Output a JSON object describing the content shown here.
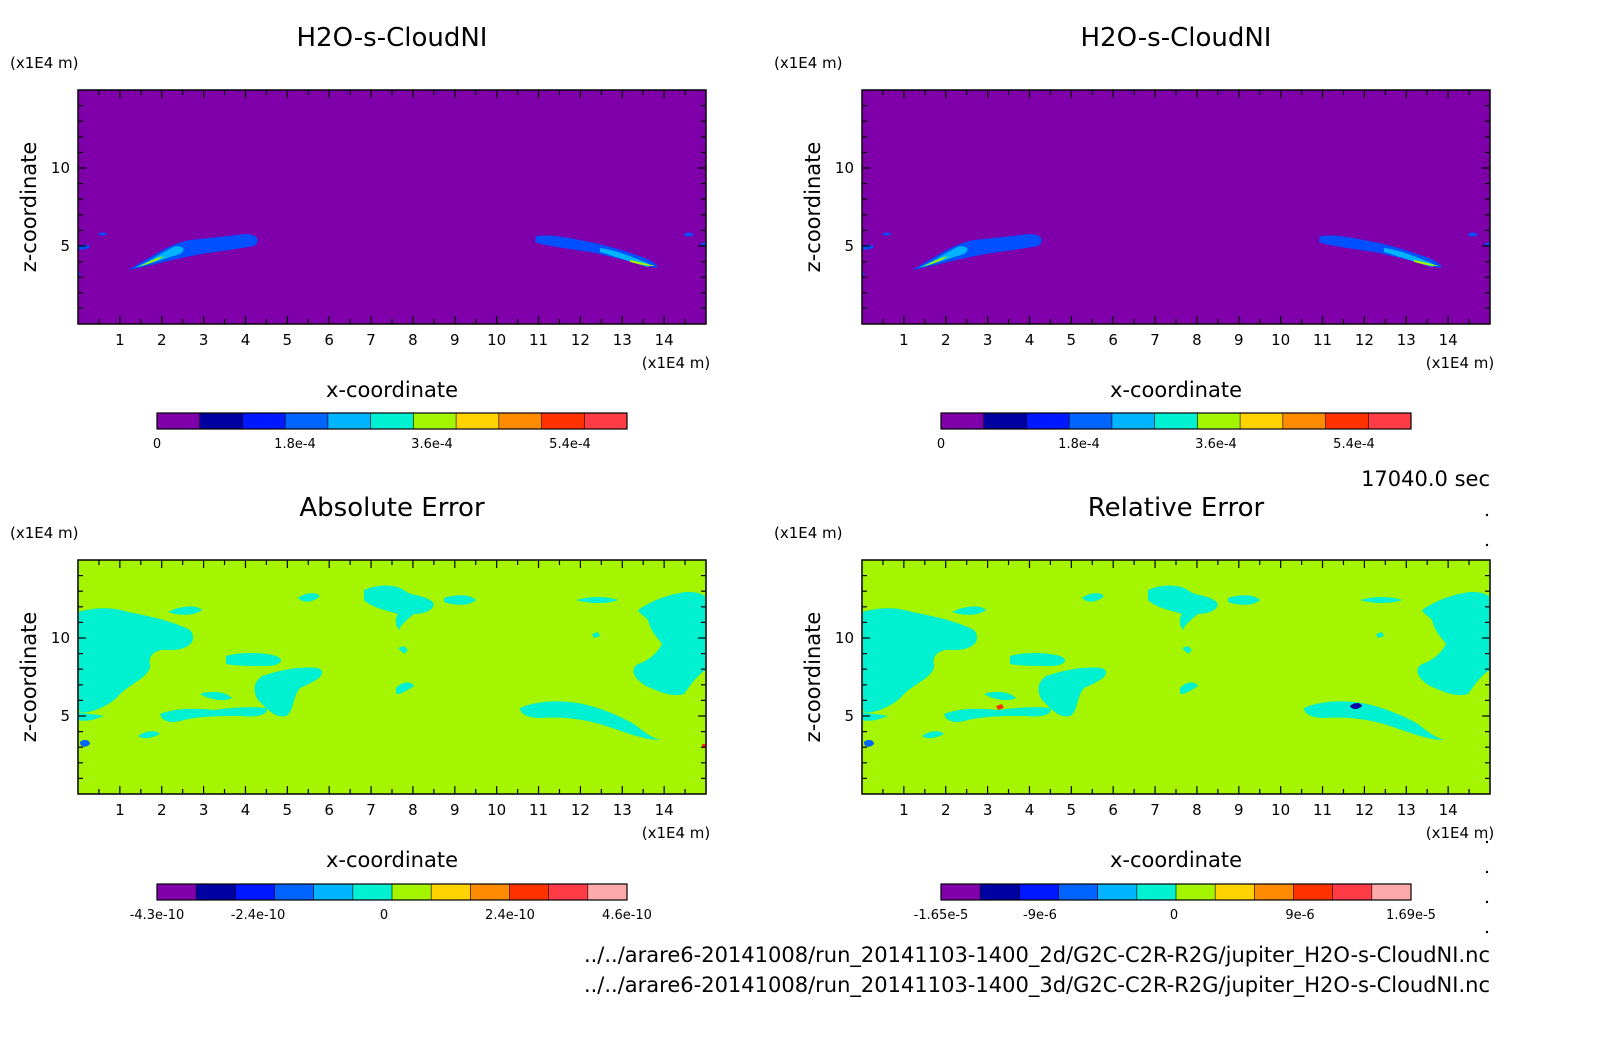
{
  "panels": [
    {
      "title": "H2O-s-CloudNI",
      "y_unit": "(x1E4 m)",
      "x_unit": "(x1E4 m)",
      "xlabel": "x-coordinate",
      "ylabel": "z-coordinate",
      "colorbar_labels": [
        "0",
        "1.8e-4",
        "3.6e-4",
        "5.4e-4"
      ]
    },
    {
      "title": "H2O-s-CloudNI",
      "y_unit": "(x1E4 m)",
      "x_unit": "(x1E4 m)",
      "xlabel": "x-coordinate",
      "ylabel": "z-coordinate",
      "colorbar_labels": [
        "0",
        "1.8e-4",
        "3.6e-4",
        "5.4e-4"
      ]
    },
    {
      "title": "Absolute Error",
      "y_unit": "(x1E4 m)",
      "x_unit": "(x1E4 m)",
      "xlabel": "x-coordinate",
      "ylabel": "z-coordinate",
      "colorbar_labels": [
        "-4.3e-10",
        "-2.4e-10",
        "0",
        "2.4e-10",
        "4.6e-10"
      ]
    },
    {
      "title": "Relative Error",
      "y_unit": "(x1E4 m)",
      "x_unit": "(x1E4 m)",
      "xlabel": "x-coordinate",
      "ylabel": "z-coordinate",
      "colorbar_labels": [
        "-1.65e-5",
        "-9e-6",
        "0",
        "9e-6",
        "1.69e-5"
      ]
    }
  ],
  "time_label": "17040.0 sec",
  "footer": {
    "file_2d": "../../arare6-20141008/run_20141103-1400_2d/G2C-C2R-R2G/jupiter_H2O-s-CloudNI.nc",
    "file_3d": "../../arare6-20141008/run_20141103-1400_3d/G2C-C2R-R2G/jupiter_H2O-s-CloudNI.nc"
  },
  "colors": {
    "background_field": "#7f00aa",
    "error_field": "#a5f500",
    "cloud_blue": "#0050ff",
    "cloud_cyan": "#00f0d2",
    "palette": [
      "#7f00aa",
      "#0000a0",
      "#0018ff",
      "#0064ff",
      "#00b4ff",
      "#00f0d2",
      "#a5f500",
      "#ffd200",
      "#ff8c00",
      "#ff3200",
      "#ff3c46",
      "#ffaaaa"
    ]
  },
  "chart_data": [
    {
      "type": "heatmap",
      "title": "H2O-s-CloudNI",
      "xlabel": "x-coordinate",
      "ylabel": "z-coordinate",
      "xlim": [
        0,
        15
      ],
      "ylim": [
        0,
        15
      ],
      "xticks": [
        1,
        2,
        3,
        4,
        5,
        6,
        7,
        8,
        9,
        10,
        11,
        12,
        13,
        14
      ],
      "yticks": [
        5,
        10
      ],
      "colorbar": {
        "min": 0,
        "max": 0.00063,
        "ticks": [
          0,
          0.00018,
          0.00036,
          0.00054
        ]
      }
    },
    {
      "type": "heatmap",
      "title": "H2O-s-CloudNI",
      "xlabel": "x-coordinate",
      "ylabel": "z-coordinate",
      "xlim": [
        0,
        15
      ],
      "ylim": [
        0,
        15
      ],
      "xticks": [
        1,
        2,
        3,
        4,
        5,
        6,
        7,
        8,
        9,
        10,
        11,
        12,
        13,
        14
      ],
      "yticks": [
        5,
        10
      ],
      "colorbar": {
        "min": 0,
        "max": 0.00063,
        "ticks": [
          0,
          0.00018,
          0.00036,
          0.00054
        ]
      }
    },
    {
      "type": "heatmap",
      "title": "Absolute Error",
      "xlabel": "x-coordinate",
      "ylabel": "z-coordinate",
      "xlim": [
        0,
        15
      ],
      "ylim": [
        0,
        15
      ],
      "xticks": [
        1,
        2,
        3,
        4,
        5,
        6,
        7,
        8,
        9,
        10,
        11,
        12,
        13,
        14
      ],
      "yticks": [
        5,
        10
      ],
      "colorbar": {
        "min": -4.3e-10,
        "max": 4.6e-10,
        "ticks": [
          -4.3e-10,
          -2.4e-10,
          0,
          2.4e-10,
          4.6e-10
        ]
      }
    },
    {
      "type": "heatmap",
      "title": "Relative Error",
      "xlabel": "x-coordinate",
      "ylabel": "z-coordinate",
      "xlim": [
        0,
        15
      ],
      "ylim": [
        0,
        15
      ],
      "xticks": [
        1,
        2,
        3,
        4,
        5,
        6,
        7,
        8,
        9,
        10,
        11,
        12,
        13,
        14
      ],
      "yticks": [
        5,
        10
      ],
      "colorbar": {
        "min": -1.65e-05,
        "max": 1.69e-05,
        "ticks": [
          -1.65e-05,
          -9e-06,
          0,
          9e-06,
          1.69e-05
        ]
      }
    }
  ]
}
